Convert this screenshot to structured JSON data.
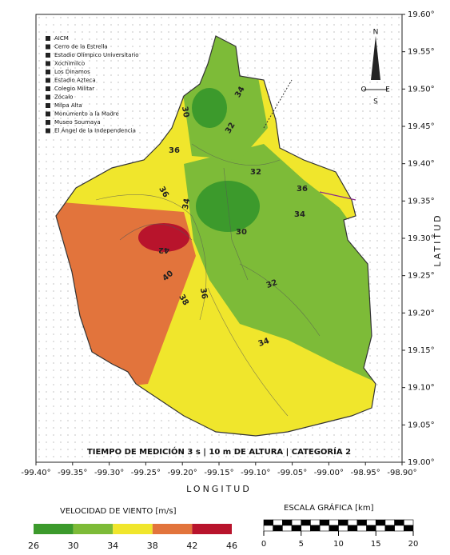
{
  "title": "TIEMPO DE MEDICIÓN 3 s | 10 m DE ALTURA | CATEGORÍA 2",
  "x_axis_label": "LONGITUD",
  "y_axis_label": "LATITUD",
  "xticks": [
    {
      "value": -99.4,
      "label": "-99.40°"
    },
    {
      "value": -99.35,
      "label": "-99.35°"
    },
    {
      "value": -99.3,
      "label": "-99.30°"
    },
    {
      "value": -99.25,
      "label": "-99.25°"
    },
    {
      "value": -99.2,
      "label": "-99.20°"
    },
    {
      "value": -99.15,
      "label": "-99.15°"
    },
    {
      "value": -99.1,
      "label": "-99.10°"
    },
    {
      "value": -99.05,
      "label": "-99.05°"
    },
    {
      "value": -99.0,
      "label": "-99.00°"
    },
    {
      "value": -98.95,
      "label": "-98.95°"
    },
    {
      "value": -98.9,
      "label": "-98.90°"
    }
  ],
  "yticks": [
    {
      "value": 19.6,
      "label": "19.60°"
    },
    {
      "value": 19.55,
      "label": "19.55°"
    },
    {
      "value": 19.5,
      "label": "19.50°"
    },
    {
      "value": 19.45,
      "label": "19.45°"
    },
    {
      "value": 19.4,
      "label": "19.40°"
    },
    {
      "value": 19.35,
      "label": "19.35°"
    },
    {
      "value": 19.3,
      "label": "19.30°"
    },
    {
      "value": 19.25,
      "label": "19.25°"
    },
    {
      "value": 19.2,
      "label": "19.20°"
    },
    {
      "value": 19.15,
      "label": "19.15°"
    },
    {
      "value": 19.1,
      "label": "19.10°"
    },
    {
      "value": 19.05,
      "label": "19.05°"
    },
    {
      "value": 19.0,
      "label": "19.00°"
    }
  ],
  "xlim": [
    -99.4,
    -98.9
  ],
  "ylim": [
    19.0,
    19.6
  ],
  "places": [
    "AICM",
    "Cerro de la Estrella",
    "Estadio Olímpico Universitario",
    "Xochimilco",
    "Los Dinamos",
    "Estadio Azteca",
    "Colegio Militar",
    "Zócalo",
    "Milpa Alta",
    "Monumento a la Madre",
    "Museo Soumaya",
    "El Ángel de la Independencia"
  ],
  "compass": [
    "N",
    "O",
    "E",
    "S"
  ],
  "contour_labels": [
    "30",
    "32",
    "34",
    "36",
    "36",
    "32",
    "34",
    "30",
    "34",
    "36",
    "40",
    "42",
    "38",
    "36",
    "32",
    "34"
  ],
  "legend": {
    "title": "VELOCIDAD DE VIENTO [m/s]",
    "breaks": [
      26,
      30,
      34,
      38,
      42,
      46
    ],
    "colors": [
      "#3c9a2c",
      "#7dbb38",
      "#f0e62c",
      "#e2743c",
      "#b8142c"
    ]
  },
  "scale": {
    "title": "ESCALA GRÁFICA [km]",
    "ticks": [
      0,
      5,
      10,
      15,
      20
    ]
  }
}
